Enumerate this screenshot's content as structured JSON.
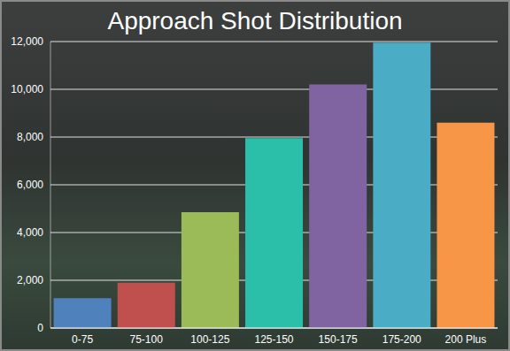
{
  "chart_data": {
    "type": "bar",
    "title": "Approach Shot Distribution",
    "categories": [
      "0-75",
      "75-100",
      "100-125",
      "125-150",
      "150-175",
      "175-200",
      "200 Plus"
    ],
    "values": [
      1250,
      1900,
      4850,
      7950,
      10200,
      11950,
      8600
    ],
    "colors": [
      "#4f81bd",
      "#c0504d",
      "#9bbb59",
      "#2bbfaa",
      "#8064a2",
      "#4bacc6",
      "#f79646"
    ],
    "ylim": [
      0,
      12000
    ],
    "yticks": [
      0,
      {
        "value": 2000,
        "label": "2,000"
      },
      {
        "value": 4000,
        "label": "4,000"
      },
      {
        "value": 6000,
        "label": "6,000"
      },
      {
        "value": 8000,
        "label": "8,000"
      },
      {
        "value": 10000,
        "label": "10,000"
      },
      {
        "value": 12000,
        "label": "12,000"
      }
    ],
    "grid": true
  }
}
